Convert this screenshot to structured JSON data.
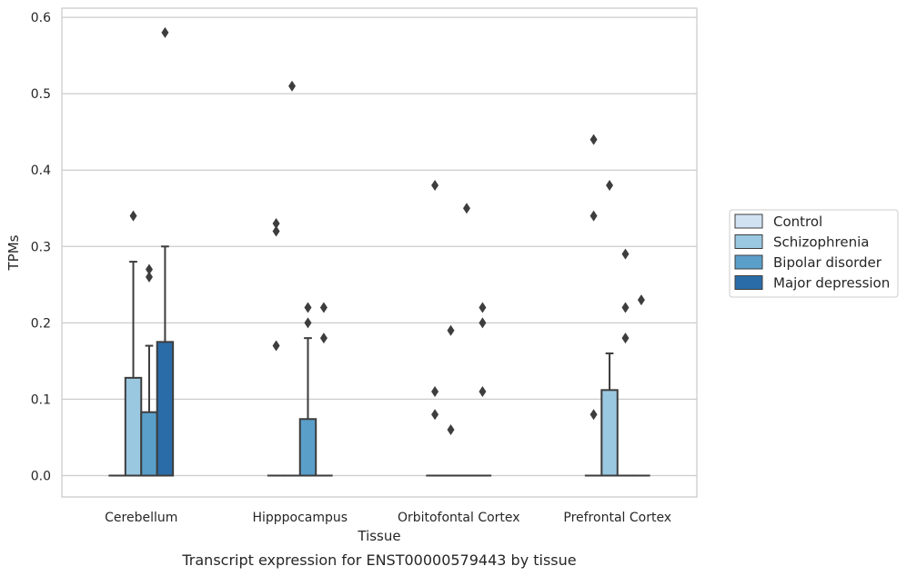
{
  "chart_data": {
    "type": "box",
    "caption": "Transcript expression for ENST00000579443 by tissue",
    "xlabel": "Tissue",
    "ylabel": "TPMs",
    "ylim": [
      -0.028,
      0.612
    ],
    "yticks": [
      0.0,
      0.1,
      0.2,
      0.3,
      0.4,
      0.5,
      0.6
    ],
    "ytick_labels": [
      "0.0",
      "0.1",
      "0.2",
      "0.3",
      "0.4",
      "0.5",
      "0.6"
    ],
    "grid": "horizontal",
    "legend_position": "right",
    "categories": [
      "Cerebellum",
      "Hipppocampus",
      "Orbitofontal Cortex",
      "Prefrontal Cortex"
    ],
    "series": [
      {
        "name": "Control",
        "color": "#d1e2f2",
        "boxes": [
          {
            "q1": 0,
            "median": 0,
            "q3": 0,
            "whisker_low": 0,
            "whisker_high": 0,
            "outliers": []
          },
          {
            "q1": 0,
            "median": 0,
            "q3": 0,
            "whisker_low": 0,
            "whisker_high": 0,
            "outliers": [
              0.17,
              0.32,
              0.33
            ]
          },
          {
            "q1": 0,
            "median": 0,
            "q3": 0,
            "whisker_low": 0,
            "whisker_high": 0,
            "outliers": [
              0.08,
              0.11,
              0.38
            ]
          },
          {
            "q1": 0,
            "median": 0,
            "q3": 0,
            "whisker_low": 0,
            "whisker_high": 0,
            "outliers": [
              0.08,
              0.34,
              0.44
            ]
          }
        ]
      },
      {
        "name": "Schizophrenia",
        "color": "#9ac8e0",
        "boxes": [
          {
            "q1": 0,
            "median": 0,
            "q3": 0.128,
            "whisker_low": 0,
            "whisker_high": 0.28,
            "outliers": [
              0.34
            ]
          },
          {
            "q1": 0,
            "median": 0,
            "q3": 0,
            "whisker_low": 0,
            "whisker_high": 0,
            "outliers": [
              0.51
            ]
          },
          {
            "q1": 0,
            "median": 0,
            "q3": 0,
            "whisker_low": 0,
            "whisker_high": 0,
            "outliers": [
              0.06,
              0.19
            ]
          },
          {
            "q1": 0,
            "median": 0,
            "q3": 0.112,
            "whisker_low": 0,
            "whisker_high": 0.16,
            "outliers": [
              0.38
            ]
          }
        ]
      },
      {
        "name": "Bipolar disorder",
        "color": "#5a9fca",
        "boxes": [
          {
            "q1": 0,
            "median": 0,
            "q3": 0.083,
            "whisker_low": 0,
            "whisker_high": 0.17,
            "outliers": [
              0.26,
              0.27
            ]
          },
          {
            "q1": 0,
            "median": 0,
            "q3": 0.074,
            "whisker_low": 0,
            "whisker_high": 0.18,
            "outliers": [
              0.2,
              0.22
            ]
          },
          {
            "q1": 0,
            "median": 0,
            "q3": 0,
            "whisker_low": 0,
            "whisker_high": 0,
            "outliers": [
              0.35
            ]
          },
          {
            "q1": 0,
            "median": 0,
            "q3": 0,
            "whisker_low": 0,
            "whisker_high": 0,
            "outliers": [
              0.18,
              0.22,
              0.29
            ]
          }
        ]
      },
      {
        "name": "Major depression",
        "color": "#2a6ca8",
        "boxes": [
          {
            "q1": 0,
            "median": 0,
            "q3": 0.175,
            "whisker_low": 0,
            "whisker_high": 0.3,
            "outliers": [
              0.58
            ]
          },
          {
            "q1": 0,
            "median": 0,
            "q3": 0,
            "whisker_low": 0,
            "whisker_high": 0,
            "outliers": [
              0.18,
              0.22
            ]
          },
          {
            "q1": 0,
            "median": 0,
            "q3": 0,
            "whisker_low": 0,
            "whisker_high": 0,
            "outliers": [
              0.11,
              0.2,
              0.22
            ]
          },
          {
            "q1": 0,
            "median": 0,
            "q3": 0,
            "whisker_low": 0,
            "whisker_high": 0,
            "outliers": [
              0.23
            ]
          }
        ]
      }
    ],
    "colors": {
      "grid": "#cccccc",
      "frame": "#cccccc",
      "box_edge": "#3d3d3d",
      "background": "#ffffff"
    }
  }
}
